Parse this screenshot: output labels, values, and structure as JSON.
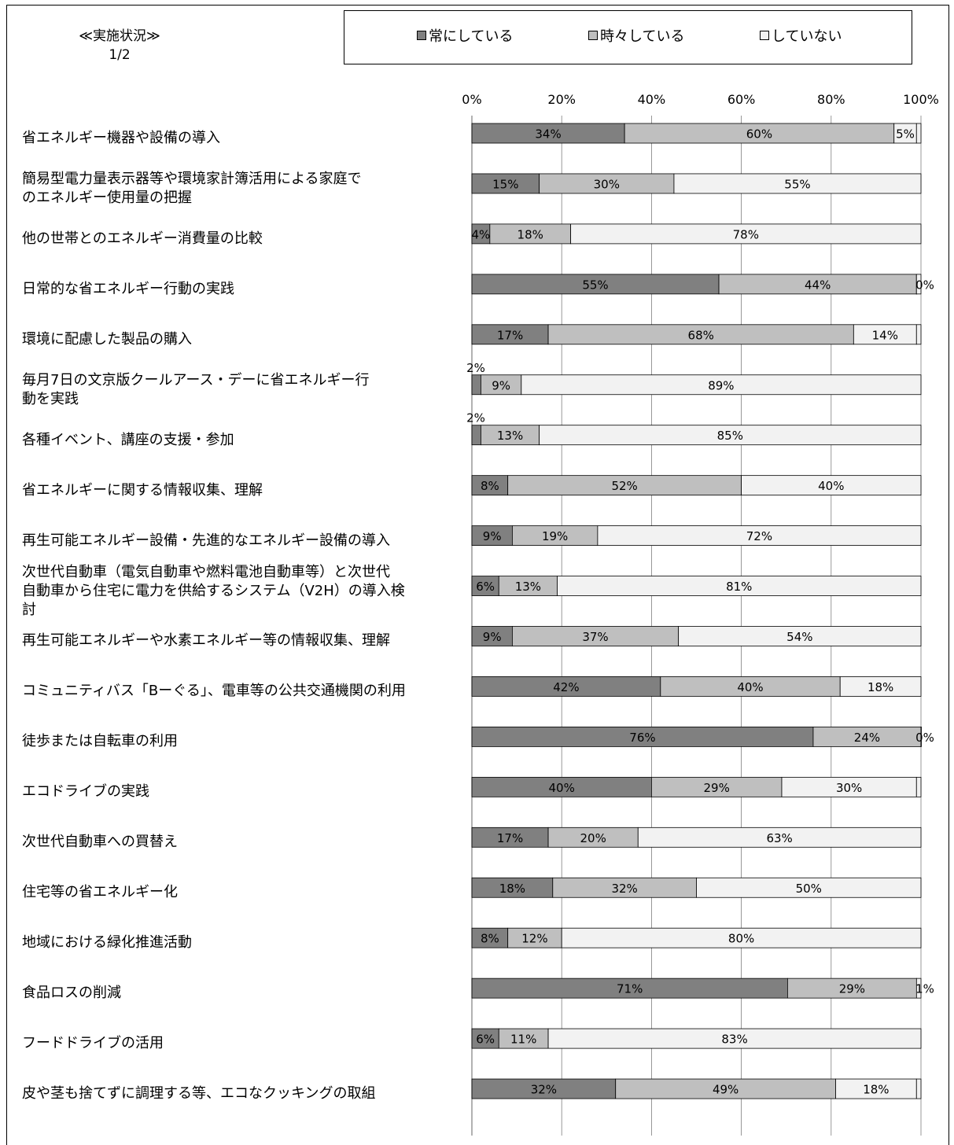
{
  "header": {
    "title": "≪実施状況≫\n1/2"
  },
  "legend": [
    {
      "name": "常にしている",
      "color": "#808080"
    },
    {
      "name": "時々している",
      "color": "#bfbfbf"
    },
    {
      "name": "していない",
      "color": "#f2f2f2"
    }
  ],
  "chart_data": {
    "type": "bar",
    "orientation": "horizontal",
    "stacked": true,
    "percent": true,
    "xlim": [
      0,
      100
    ],
    "ticks": [
      "0%",
      "20%",
      "40%",
      "60%",
      "80%",
      "100%"
    ],
    "grid": true,
    "legend_position": "top",
    "categories": [
      "省エネルギー機器や設備の導入",
      "簡易型電力量表示器等や環境家計簿活用による家庭で\nのエネルギー使用量の把握",
      "他の世帯とのエネルギー消費量の比較",
      "日常的な省エネルギー行動の実践",
      "環境に配慮した製品の購入",
      "毎月7日の文京版クールアース・デーに省エネルギー行\n動を実践",
      "各種イベント、講座の支援・参加",
      "省エネルギーに関する情報収集、理解",
      "再生可能エネルギー設備・先進的なエネルギー設備の導入",
      "次世代自動車（電気自動車や燃料電池自動車等）と次世代\n自動車から住宅に電力を供給するシステム（V2H）の導入検\n討",
      "再生可能エネルギーや水素エネルギー等の情報収集、理解",
      "コミュニティバス「Bーぐる」、電車等の公共交通機関の利用",
      "徒歩または自転車の利用",
      "エコドライブの実践",
      "次世代自動車への買替え",
      "住宅等の省エネルギー化",
      "地域における緑化推進活動",
      "食品ロスの削減",
      "フードドライブの活用",
      "皮や茎も捨てずに調理する等、エコなクッキングの取組"
    ],
    "series": [
      {
        "name": "常にしている",
        "color": "#808080",
        "values": [
          34,
          15,
          4,
          55,
          17,
          2,
          2,
          8,
          9,
          6,
          9,
          42,
          76,
          40,
          17,
          18,
          8,
          71,
          6,
          32
        ]
      },
      {
        "name": "時々している",
        "color": "#bfbfbf",
        "values": [
          60,
          30,
          18,
          44,
          68,
          9,
          13,
          52,
          19,
          13,
          37,
          40,
          24,
          29,
          20,
          32,
          12,
          29,
          11,
          49
        ]
      },
      {
        "name": "していない",
        "color": "#f2f2f2",
        "values": [
          5,
          55,
          78,
          0,
          14,
          89,
          85,
          40,
          72,
          81,
          54,
          18,
          0,
          30,
          63,
          50,
          80,
          1,
          83,
          18
        ]
      }
    ]
  }
}
